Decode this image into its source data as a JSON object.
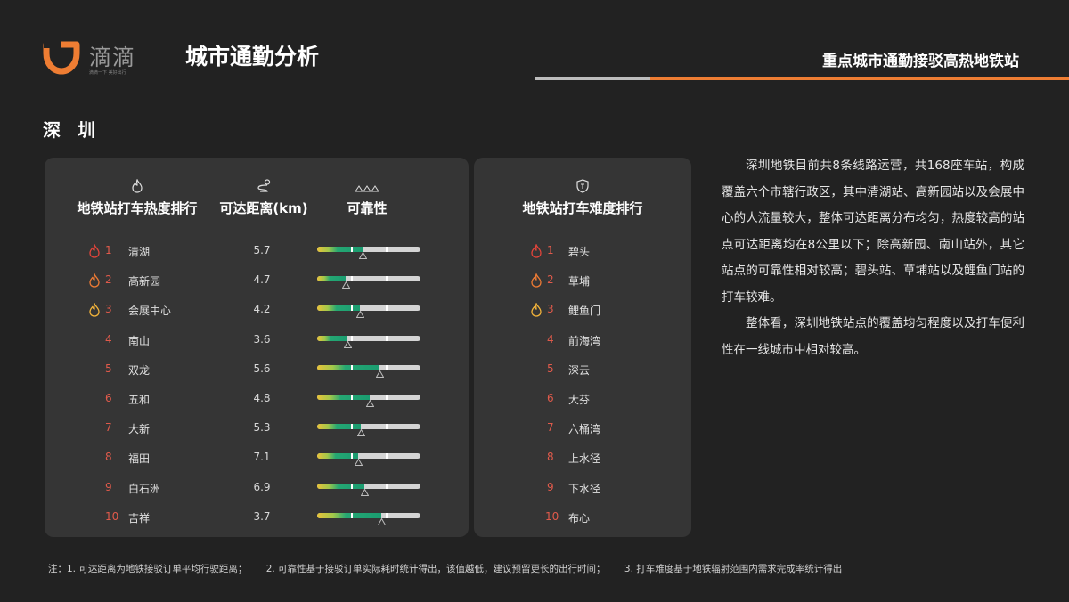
{
  "brand": {
    "name": "滴滴",
    "slogan": "滴滴一下 美好出行",
    "color": "#ee7d33"
  },
  "header": {
    "title": "城市通勤分析",
    "subtitle": "重点城市通勤接驳高热地铁站"
  },
  "city": "深 圳",
  "heat_table": {
    "headers": {
      "rank": "地铁站打车热度排行",
      "distance": "可达距离(km)",
      "reliability": "可靠性"
    },
    "icons": {
      "rank": "fire-icon",
      "distance": "route-icon",
      "reliability": "mountain-icon"
    },
    "rows": [
      {
        "rank": "1",
        "station": "清湖",
        "distance": "5.7",
        "reliability": 0.44
      },
      {
        "rank": "2",
        "station": "高新园",
        "distance": "4.7",
        "reliability": 0.28
      },
      {
        "rank": "3",
        "station": "会展中心",
        "distance": "4.2",
        "reliability": 0.41
      },
      {
        "rank": "4",
        "station": "南山",
        "distance": "3.6",
        "reliability": 0.29
      },
      {
        "rank": "5",
        "station": "双龙",
        "distance": "5.6",
        "reliability": 0.6
      },
      {
        "rank": "6",
        "station": "五和",
        "distance": "4.8",
        "reliability": 0.51
      },
      {
        "rank": "7",
        "station": "大新",
        "distance": "5.3",
        "reliability": 0.42
      },
      {
        "rank": "8",
        "station": "福田",
        "distance": "7.1",
        "reliability": 0.4
      },
      {
        "rank": "9",
        "station": "白石洲",
        "distance": "6.9",
        "reliability": 0.46
      },
      {
        "rank": "10",
        "station": "吉祥",
        "distance": "3.7",
        "reliability": 0.62
      }
    ]
  },
  "difficulty_table": {
    "header": "地铁站打车难度排行",
    "icon": "shield-icon",
    "rows": [
      {
        "rank": "1",
        "station": "碧头"
      },
      {
        "rank": "2",
        "station": "草埔"
      },
      {
        "rank": "3",
        "station": "鲤鱼门"
      },
      {
        "rank": "4",
        "station": "前海湾"
      },
      {
        "rank": "5",
        "station": "深云"
      },
      {
        "rank": "6",
        "station": "大芬"
      },
      {
        "rank": "7",
        "station": "六桶湾"
      },
      {
        "rank": "8",
        "station": "上水径"
      },
      {
        "rank": "9",
        "station": "下水径"
      },
      {
        "rank": "10",
        "station": "布心"
      }
    ]
  },
  "description": {
    "p1": "深圳地铁目前共8条线路运营，共168座车站，构成覆盖六个市辖行政区，其中清湖站、高新园站以及会展中心的人流量较大，整体可达距离分布均匀，热度较高的站点可达距离均在8公里以下；除高新园、南山站外，其它站点的可靠性相对较高；碧头站、草埔站以及鲤鱼门站的打车较难。",
    "p2": "整体看，深圳地铁站点的覆盖均匀程度以及打车便利性在一线城市中相对较高。"
  },
  "footnotes": {
    "n1": "注：1. 可达距离为地铁接驳订单平均行驶距离；",
    "n2": "2. 可靠性基于接驳订单实际耗时统计得出，该值越低，建议预留更长的出行时间；",
    "n3": "3. 打车难度基于地铁辐射范围内需求完成率统计得出"
  },
  "colors": {
    "rank_red": "#e05a4b",
    "fire_1": "#e0443a",
    "fire_2": "#ec7a34",
    "fire_3": "#f2b33a",
    "bar_track": "#d4d4d4",
    "bar_green": "#1a9c70",
    "bar_yellow": "#e8c23a"
  }
}
